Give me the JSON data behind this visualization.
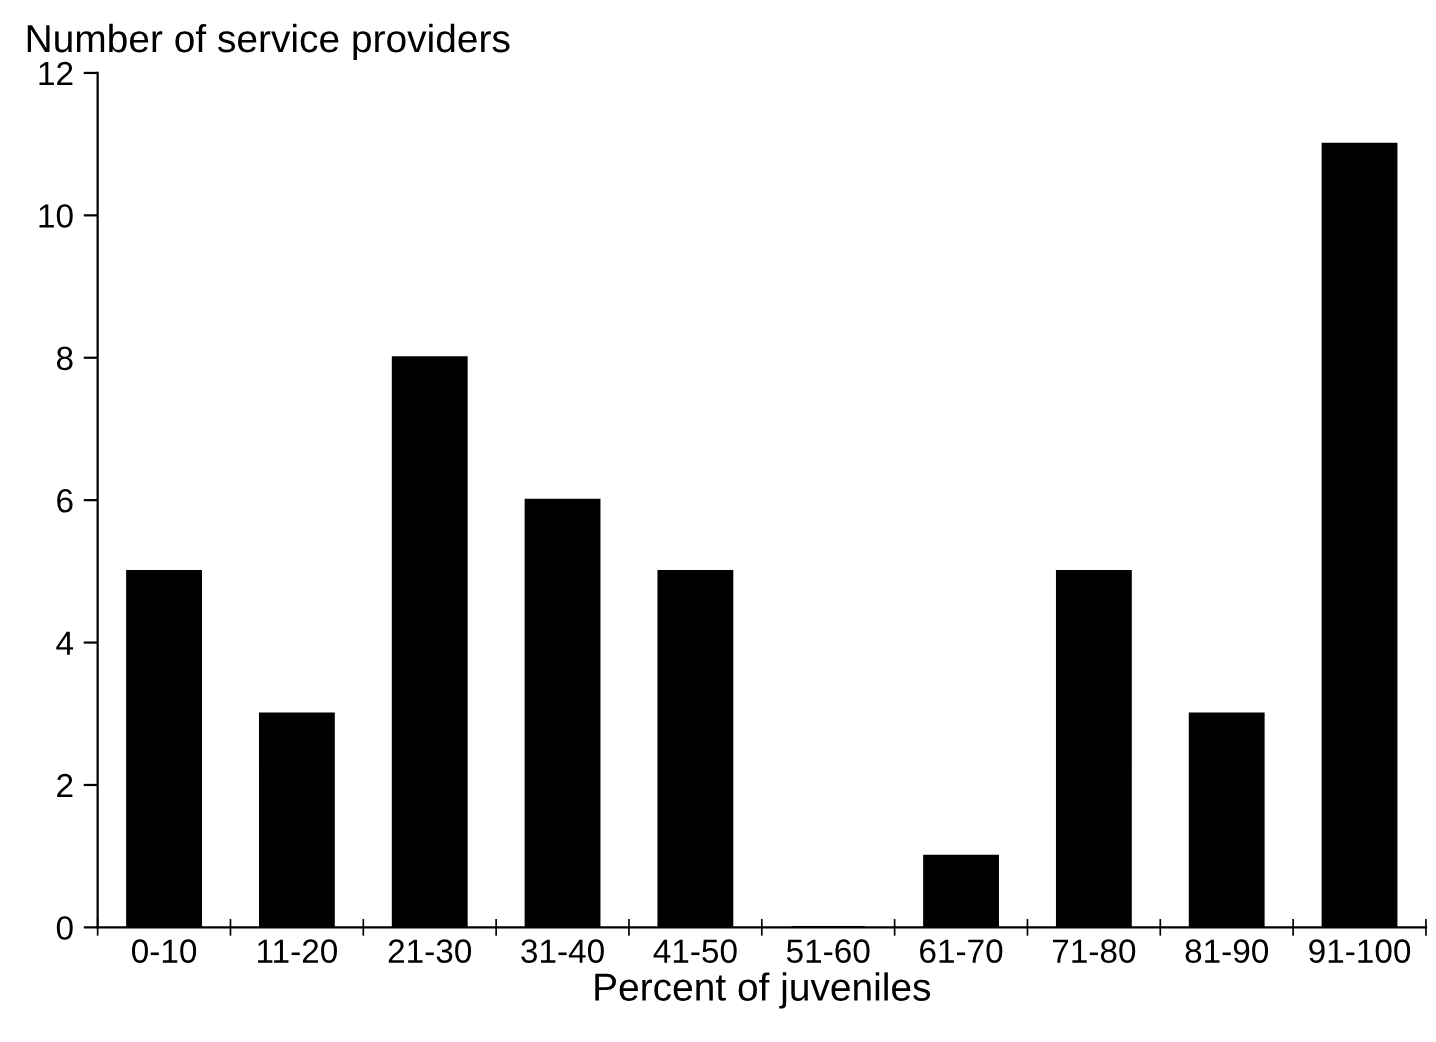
{
  "chart_data": {
    "type": "bar",
    "xlabel": "Percent of juveniles",
    "ylabel": "Number of service providers",
    "categories": [
      "0-10",
      "11-20",
      "21-30",
      "31-40",
      "41-50",
      "51-60",
      "61-70",
      "71-80",
      "81-90",
      "91-100"
    ],
    "values": [
      5,
      3,
      8,
      6,
      5,
      0,
      1,
      5,
      3,
      11
    ],
    "color": "#000000",
    "ylim": [
      0,
      12
    ],
    "yticks": [
      0,
      2,
      4,
      6,
      8,
      10,
      12
    ],
    "grid": false,
    "legend": false
  }
}
